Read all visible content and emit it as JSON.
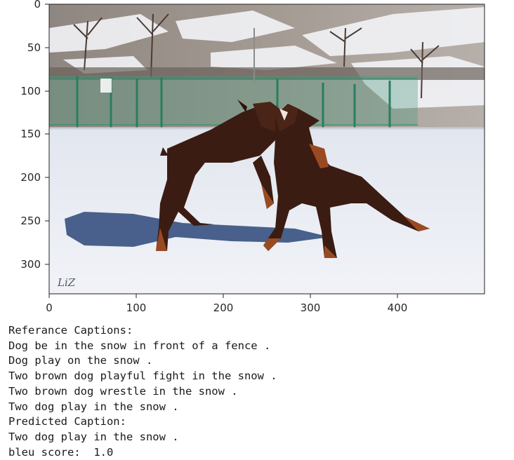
{
  "plot": {
    "x_axis": {
      "ticks": [
        "0",
        "100",
        "200",
        "300",
        "400"
      ]
    },
    "y_axis": {
      "ticks": [
        "0",
        "50",
        "100",
        "150",
        "200",
        "250",
        "300"
      ]
    },
    "image": {
      "subject": "two brown dobermans playfully fighting in the snow in front of a fence",
      "watermark": "LiZ"
    }
  },
  "output": {
    "reference_header": "Referance Captions:",
    "reference_captions": [
      "Dog be in the snow in front of a fence .",
      "Dog play on the snow .",
      "Two brown dog playful fight in the snow .",
      "Two brown dog wrestle in the snow .",
      "Two dog play in the snow ."
    ],
    "predicted_header": "Predicted Caption:",
    "predicted_caption": "Two dog play in the snow .",
    "bleu_line": "bleu score:  1.0"
  },
  "colors": {
    "dog_body": "#3b1c12",
    "dog_tan": "#9a4a22",
    "snow": "#eef1f6",
    "shadow": "#2c4678",
    "fence": "#2f8f6e",
    "hillside": "#9a8f86"
  }
}
